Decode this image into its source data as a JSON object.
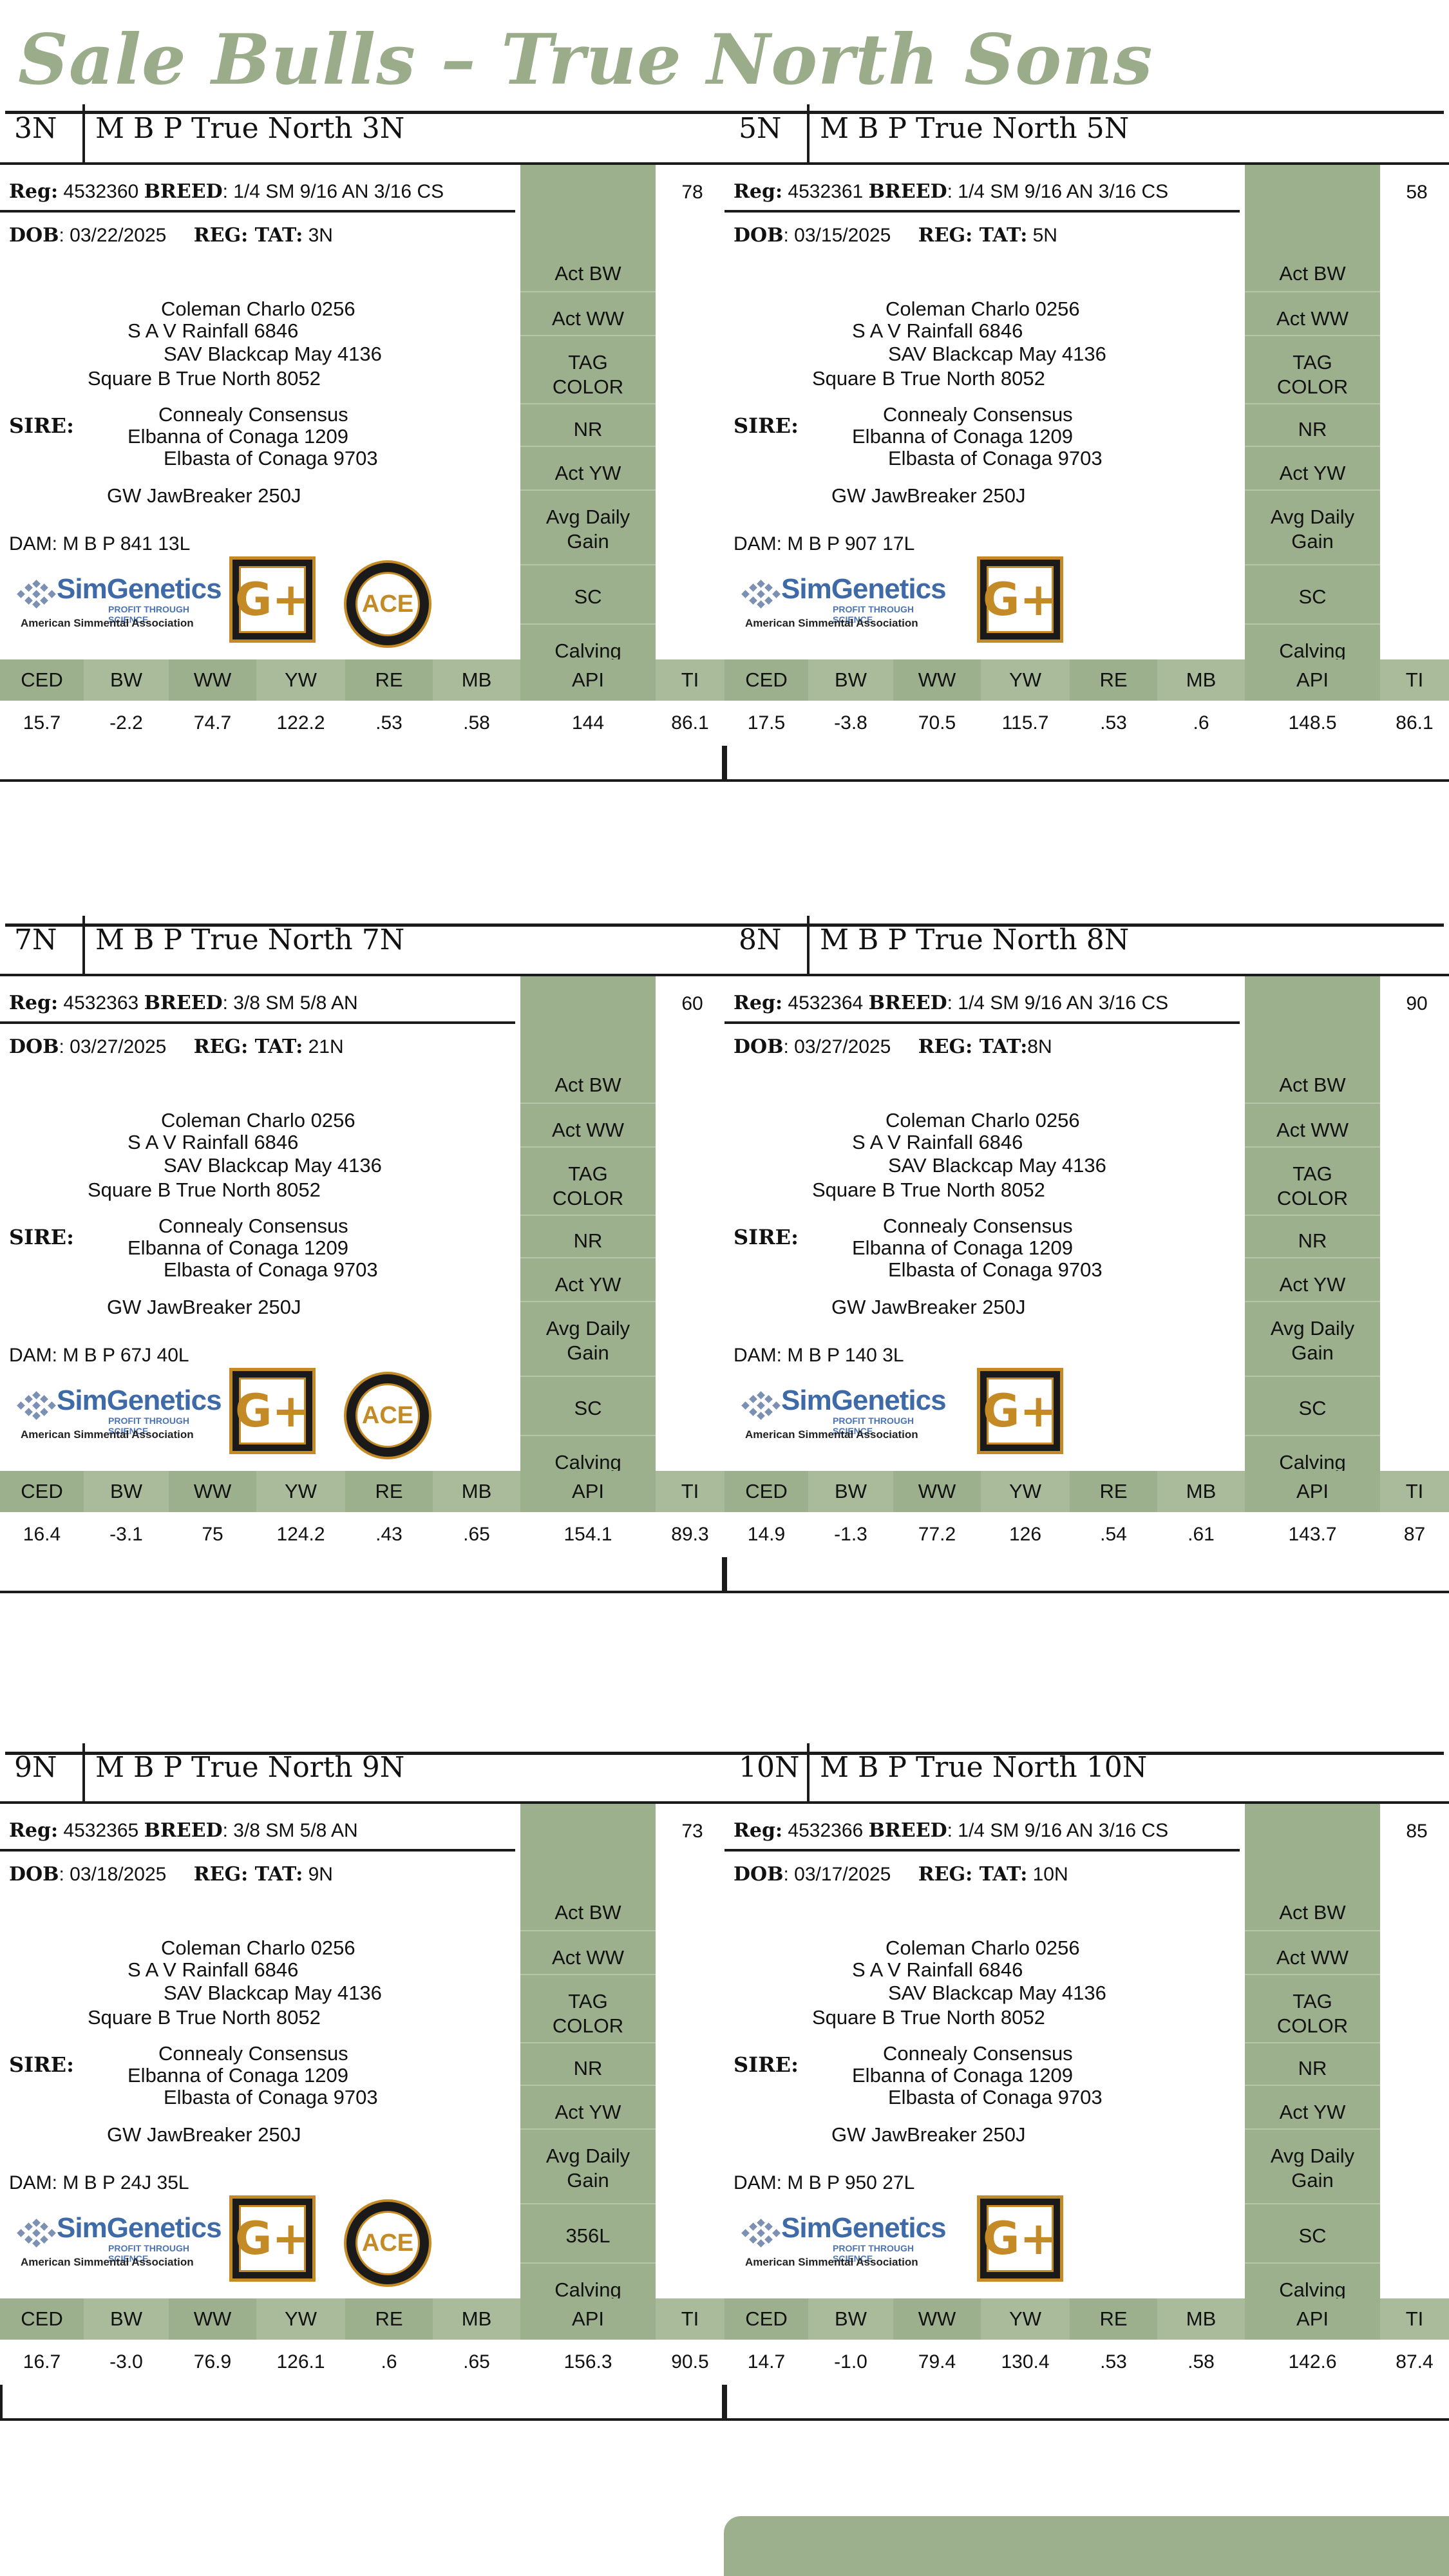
{
  "page": {
    "title": "Sale Bulls – True North Sons"
  },
  "labels": {
    "reg": "Reg:",
    "breed": "BREED",
    "dob": "DOB",
    "reg_tat": "REG: TAT:",
    "sire": "SIRE:",
    "dam": "DAM:",
    "side_panel": [
      "Act BW",
      "Act WW",
      "TAG COLOR",
      "NR",
      "Act YW",
      "Avg Daily Gain",
      "SC",
      "Calving Ease"
    ],
    "epd_headers": [
      "CED",
      "BW",
      "WW",
      "YW",
      "RE",
      "MB",
      "API",
      "TI"
    ]
  },
  "logos": {
    "simgenetics_word": "SimGenetics",
    "simgenetics_tagline": "PROFIT THROUGH SCIENCE",
    "simgenetics_association": "American Simmental Association",
    "gplus_text": "G+",
    "ace_text": "ACE"
  },
  "colors": {
    "accent_green": "#9db08d",
    "title_green": "#9aac8a",
    "gold": "#c48a26"
  },
  "bulls": [
    {
      "tag": "3N",
      "name": "M B P True North 3N",
      "reg": "4532360",
      "breed": ": 1/4 SM 9/16 AN 3/16 CS",
      "dob": ": 03/22/2025",
      "tat": " 3N",
      "act_bw": "78",
      "pedigree": {
        "sss": "Coleman Charlo 0256",
        "ss": "S A V Rainfall 6846",
        "ssd": "SAV Blackcap May 4136",
        "sire": "Square B True North 8052",
        "sds": "Connealy Consensus",
        "sd": "Elbanna of Conaga 1209",
        "sdd": "Elbasta of Conaga 9703",
        "dam_sire": "GW JawBreaker 250J"
      },
      "dam": "M B P 841 13L",
      "sc_value": "SC",
      "has_ace": true,
      "epds": [
        "15.7",
        "-2.2",
        "74.7",
        "122.2",
        ".53",
        ".58",
        "144",
        "86.1"
      ]
    },
    {
      "tag": "5N",
      "name": "M B P True North 5N",
      "reg": "4532361",
      "breed": ": 1/4 SM 9/16 AN 3/16 CS",
      "dob": ": 03/15/2025",
      "tat": " 5N",
      "act_bw": "58",
      "pedigree": {
        "sss": "Coleman Charlo 0256",
        "ss": "S A V Rainfall 6846",
        "ssd": "SAV Blackcap May 4136",
        "sire": "Square B True North 8052",
        "sds": "Connealy Consensus",
        "sd": "Elbanna of Conaga 1209",
        "sdd": "Elbasta of Conaga 9703",
        "dam_sire": "GW JawBreaker 250J"
      },
      "dam": "M B P 907 17L",
      "sc_value": "SC",
      "has_ace": false,
      "epds": [
        "17.5",
        "-3.8",
        "70.5",
        "115.7",
        ".53",
        ".6",
        "148.5",
        "86.1"
      ]
    },
    {
      "tag": "7N",
      "name": "M B P True North 7N",
      "reg": "4532363",
      "breed": ": 3/8 SM 5/8 AN",
      "dob": ": 03/27/2025",
      "tat": " 21N",
      "act_bw": "60",
      "pedigree": {
        "sss": "Coleman Charlo 0256",
        "ss": "S A V Rainfall 6846",
        "ssd": "SAV Blackcap May 4136",
        "sire": "Square B True North 8052",
        "sds": "Connealy Consensus",
        "sd": "Elbanna of Conaga 1209",
        "sdd": "Elbasta of Conaga 9703",
        "dam_sire": "GW JawBreaker 250J"
      },
      "dam": "M B P 67J 40L",
      "sc_value": "SC",
      "has_ace": true,
      "epds": [
        "16.4",
        "-3.1",
        "75",
        "124.2",
        ".43",
        ".65",
        "154.1",
        "89.3"
      ]
    },
    {
      "tag": "8N",
      "name": "M B P True North 8N",
      "reg": "4532364",
      "breed": ": 1/4 SM 9/16 AN 3/16 CS",
      "dob": ": 03/27/2025",
      "tat": "8N",
      "act_bw": "90",
      "pedigree": {
        "sss": "Coleman Charlo 0256",
        "ss": "S A V Rainfall 6846",
        "ssd": "SAV Blackcap May 4136",
        "sire": "Square B True North 8052",
        "sds": "Connealy Consensus",
        "sd": "Elbanna of Conaga 1209",
        "sdd": "Elbasta of Conaga 9703",
        "dam_sire": "GW JawBreaker 250J"
      },
      "dam": "M B P 140 3L",
      "sc_value": "SC",
      "has_ace": false,
      "epds": [
        "14.9",
        "-1.3",
        "77.2",
        "126",
        ".54",
        ".61",
        "143.7",
        "87"
      ]
    },
    {
      "tag": "9N",
      "name": "M B P True North 9N",
      "reg": "4532365",
      "breed": ": 3/8 SM 5/8 AN",
      "dob": ": 03/18/2025",
      "tat": " 9N",
      "act_bw": "73",
      "pedigree": {
        "sss": "Coleman Charlo 0256",
        "ss": "S A V Rainfall 6846",
        "ssd": "SAV Blackcap May 4136",
        "sire": "Square B True North 8052",
        "sds": "Connealy Consensus",
        "sd": "Elbanna of Conaga 1209",
        "sdd": "Elbasta of Conaga 9703",
        "dam_sire": "GW JawBreaker 250J"
      },
      "dam": "M B P 24J 35L",
      "sc_value": "356L",
      "has_ace": true,
      "epds": [
        "16.7",
        "-3.0",
        "76.9",
        "126.1",
        ".6",
        ".65",
        "156.3",
        "90.5"
      ]
    },
    {
      "tag": "10N",
      "name": "M B P True North 10N",
      "reg": "4532366",
      "breed": ": 1/4 SM 9/16 AN 3/16 CS",
      "dob": ": 03/17/2025",
      "tat": " 10N",
      "act_bw": "85",
      "pedigree": {
        "sss": "Coleman Charlo 0256",
        "ss": "S A V Rainfall 6846",
        "ssd": "SAV Blackcap May 4136",
        "sire": "Square B True North 8052",
        "sds": "Connealy Consensus",
        "sd": "Elbanna of Conaga 1209",
        "sdd": "Elbasta of Conaga 9703",
        "dam_sire": "GW JawBreaker 250J"
      },
      "dam": "M B P 950 27L",
      "sc_value": "SC",
      "has_ace": false,
      "epds": [
        "14.7",
        "-1.0",
        "79.4",
        "130.4",
        ".53",
        ".58",
        "142.6",
        "87.4"
      ]
    }
  ]
}
